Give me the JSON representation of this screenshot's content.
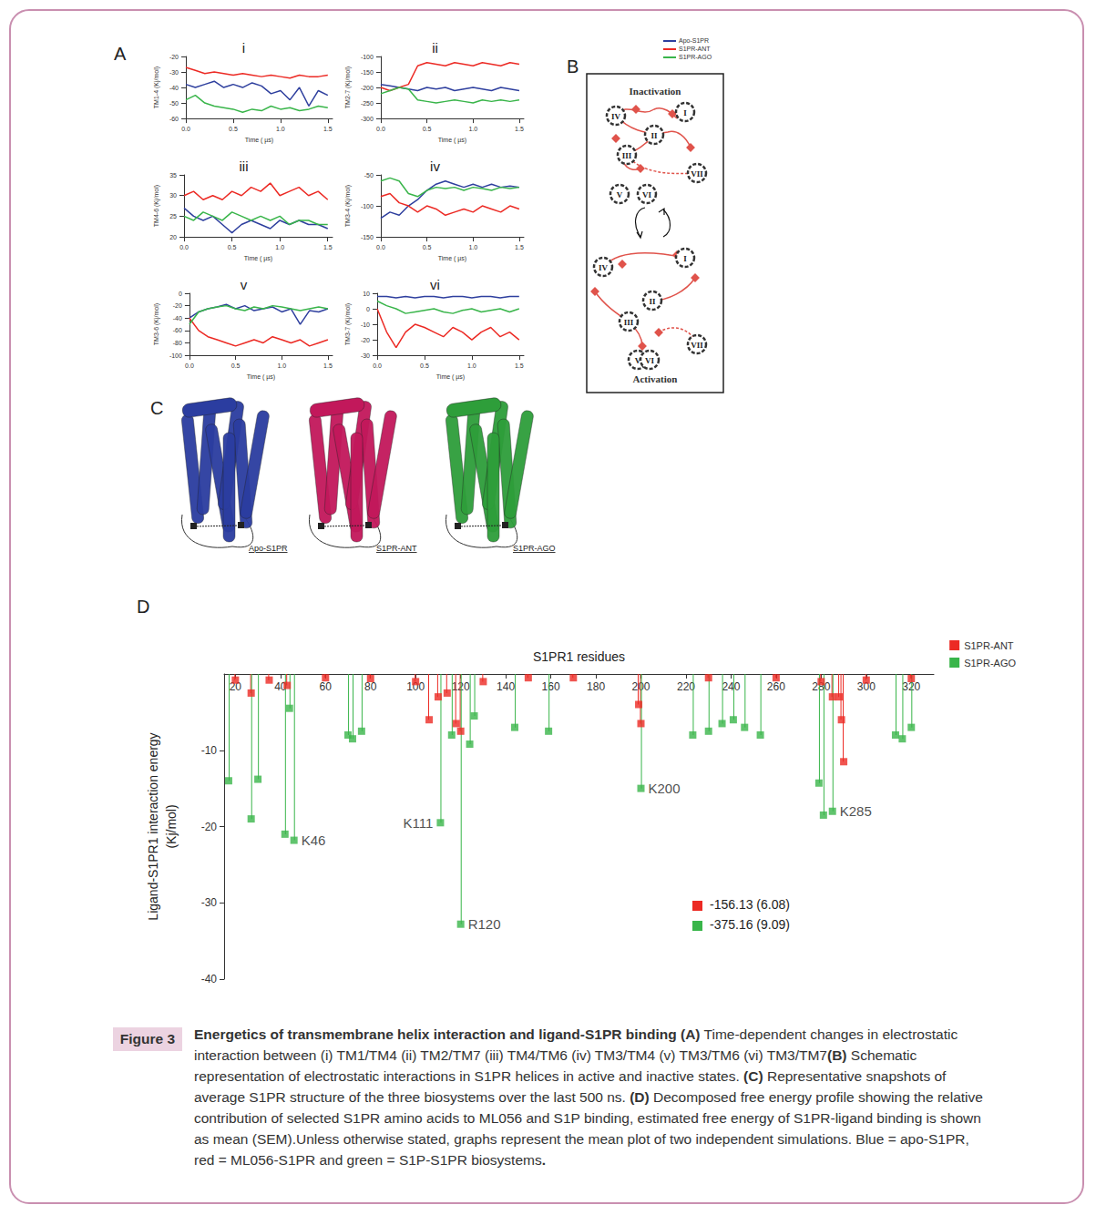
{
  "panel_labels": [
    "A",
    "B",
    "C",
    "D"
  ],
  "chart_data": [
    {
      "type": "line",
      "title": "i",
      "xlabel": "Time ( µs)",
      "ylabel": "TM1-4 (Kj/mol)",
      "x": [
        0,
        0.1,
        0.2,
        0.3,
        0.4,
        0.5,
        0.6,
        0.7,
        0.8,
        0.9,
        1.0,
        1.1,
        1.2,
        1.3,
        1.4,
        1.5
      ],
      "xlim": [
        0,
        1.55
      ],
      "xticks": [
        {
          "value": 0,
          "label": "0.0"
        },
        0.5,
        {
          "value": 1,
          "label": "1.0"
        },
        1.5
      ],
      "ylim": [
        -60,
        -20
      ],
      "yticks": [
        -60,
        -50,
        -40,
        -30,
        -20
      ],
      "series": [
        {
          "name": "Apo-S1PR",
          "color": "#2e3f9e",
          "values": [
            -38,
            -40,
            -38,
            -36,
            -40,
            -38,
            -40,
            -37,
            -39,
            -44,
            -42,
            -48,
            -40,
            -52,
            -42,
            -45
          ]
        },
        {
          "name": "S1PR-ANT",
          "color": "#ec2a24",
          "values": [
            -27,
            -29,
            -31,
            -30,
            -31,
            -32,
            -31,
            -32,
            -33,
            -32,
            -33,
            -34,
            -32,
            -33,
            -33,
            -32
          ]
        },
        {
          "name": "S1PR-AGO",
          "color": "#39b54a",
          "values": [
            -48,
            -45,
            -50,
            -52,
            -53,
            -54,
            -56,
            -54,
            -55,
            -52,
            -54,
            -53,
            -55,
            -54,
            -52,
            -53
          ]
        }
      ]
    },
    {
      "type": "line",
      "title": "ii",
      "xlabel": "Time ( µs)",
      "ylabel": "TM2-7 (Kj/mol)",
      "x": [
        0,
        0.1,
        0.2,
        0.3,
        0.4,
        0.5,
        0.6,
        0.7,
        0.8,
        0.9,
        1.0,
        1.1,
        1.2,
        1.3,
        1.4,
        1.5
      ],
      "xlim": [
        0,
        1.55
      ],
      "xticks": [
        {
          "value": 0,
          "label": "0.0"
        },
        0.5,
        {
          "value": 1,
          "label": "1.0"
        },
        1.5
      ],
      "ylim": [
        -300,
        -100
      ],
      "yticks": [
        -300,
        -250,
        -200,
        -150,
        -100
      ],
      "series": [
        {
          "name": "Apo-S1PR",
          "color": "#2e3f9e",
          "values": [
            -190,
            -195,
            -200,
            -205,
            -210,
            -200,
            -205,
            -200,
            -210,
            -205,
            -200,
            -205,
            -210,
            -200,
            -205,
            -210
          ]
        },
        {
          "name": "S1PR-ANT",
          "color": "#ec2a24",
          "values": [
            -200,
            -210,
            -200,
            -190,
            -130,
            -120,
            -125,
            -130,
            -120,
            -125,
            -130,
            -120,
            -125,
            -130,
            -120,
            -125
          ]
        },
        {
          "name": "S1PR-AGO",
          "color": "#39b54a",
          "values": [
            -220,
            -210,
            -200,
            -205,
            -240,
            -245,
            -250,
            -245,
            -240,
            -245,
            -250,
            -240,
            -245,
            -240,
            -245,
            -240
          ]
        }
      ]
    },
    {
      "type": "line",
      "title": "iii",
      "xlabel": "Time ( µs)",
      "ylabel": "TM4-6 (Kj/mol)",
      "x": [
        0,
        0.1,
        0.2,
        0.3,
        0.4,
        0.5,
        0.6,
        0.7,
        0.8,
        0.9,
        1.0,
        1.1,
        1.2,
        1.3,
        1.4,
        1.5
      ],
      "xlim": [
        0,
        1.55
      ],
      "xticks": [
        {
          "value": 0,
          "label": "0.0"
        },
        0.5,
        {
          "value": 1,
          "label": "1.0"
        },
        1.5
      ],
      "ylim": [
        20,
        35
      ],
      "yticks": [
        20,
        25,
        30,
        35
      ],
      "series": [
        {
          "name": "Apo-S1PR",
          "color": "#2e3f9e",
          "values": [
            27,
            25,
            24,
            25,
            23,
            21,
            23,
            24,
            23,
            22,
            24,
            23,
            24,
            23,
            23,
            22
          ]
        },
        {
          "name": "S1PR-ANT",
          "color": "#ec2a24",
          "values": [
            30,
            31,
            29,
            30,
            29,
            31,
            30,
            32,
            31,
            33,
            30,
            31,
            32,
            30,
            31,
            29
          ]
        },
        {
          "name": "S1PR-AGO",
          "color": "#39b54a",
          "values": [
            25,
            24,
            26,
            25,
            24,
            26,
            25,
            24,
            25,
            24,
            25,
            23,
            24,
            24,
            23,
            23
          ]
        }
      ]
    },
    {
      "type": "line",
      "title": "iv",
      "xlabel": "Time ( µs)",
      "ylabel": "TM3-4 (Kj/mol)",
      "x": [
        0,
        0.1,
        0.2,
        0.3,
        0.4,
        0.5,
        0.6,
        0.7,
        0.8,
        0.9,
        1.0,
        1.1,
        1.2,
        1.3,
        1.4,
        1.5
      ],
      "xlim": [
        0,
        1.55
      ],
      "xticks": [
        {
          "value": 0,
          "label": "0.0"
        },
        0.5,
        {
          "value": 1,
          "label": "1.0"
        },
        1.5
      ],
      "ylim": [
        -150,
        -50
      ],
      "yticks": [
        -150,
        -100,
        -50
      ],
      "series": [
        {
          "name": "Apo-S1PR",
          "color": "#2e3f9e",
          "values": [
            -120,
            -110,
            -115,
            -100,
            -90,
            -75,
            -65,
            -60,
            -65,
            -70,
            -65,
            -70,
            -65,
            -70,
            -68,
            -70
          ]
        },
        {
          "name": "S1PR-ANT",
          "color": "#ec2a24",
          "values": [
            -85,
            -80,
            -95,
            -100,
            -110,
            -100,
            -105,
            -115,
            -110,
            -105,
            -110,
            -100,
            -105,
            -110,
            -100,
            -105
          ]
        },
        {
          "name": "S1PR-AGO",
          "color": "#39b54a",
          "values": [
            -60,
            -55,
            -60,
            -80,
            -85,
            -75,
            -70,
            -72,
            -70,
            -75,
            -70,
            -72,
            -75,
            -70,
            -72,
            -70
          ]
        }
      ]
    },
    {
      "type": "line",
      "title": "v",
      "xlabel": "Time ( µs)",
      "ylabel": "TM3-6 (Kj/mol)",
      "x": [
        0,
        0.1,
        0.2,
        0.3,
        0.4,
        0.5,
        0.6,
        0.7,
        0.8,
        0.9,
        1.0,
        1.1,
        1.2,
        1.3,
        1.4,
        1.5
      ],
      "xlim": [
        0,
        1.55
      ],
      "xticks": [
        {
          "value": 0,
          "label": "0.0"
        },
        0.5,
        {
          "value": 1,
          "label": "1.0"
        },
        1.5
      ],
      "ylim": [
        -100,
        0
      ],
      "yticks": [
        -100,
        -80,
        -60,
        -40,
        -20,
        0
      ],
      "series": [
        {
          "name": "Apo-S1PR",
          "color": "#2e3f9e",
          "values": [
            -40,
            -30,
            -25,
            -22,
            -18,
            -25,
            -20,
            -28,
            -25,
            -22,
            -30,
            -25,
            -50,
            -28,
            -30,
            -25
          ]
        },
        {
          "name": "S1PR-ANT",
          "color": "#ec2a24",
          "values": [
            -40,
            -60,
            -70,
            -75,
            -80,
            -85,
            -80,
            -75,
            -80,
            -70,
            -75,
            -80,
            -75,
            -85,
            -80,
            -75
          ]
        },
        {
          "name": "S1PR-AGO",
          "color": "#39b54a",
          "values": [
            -50,
            -30,
            -25,
            -22,
            -20,
            -25,
            -28,
            -22,
            -25,
            -20,
            -22,
            -25,
            -28,
            -25,
            -22,
            -25
          ]
        }
      ]
    },
    {
      "type": "line",
      "title": "vi",
      "xlabel": "Time ( µs)",
      "ylabel": "TM3-7 (Kj/mol)",
      "x": [
        0,
        0.1,
        0.2,
        0.3,
        0.4,
        0.5,
        0.6,
        0.7,
        0.8,
        0.9,
        1.0,
        1.1,
        1.2,
        1.3,
        1.4,
        1.5
      ],
      "xlim": [
        0,
        1.55
      ],
      "xticks": [
        {
          "value": 0,
          "label": "0.0"
        },
        0.5,
        {
          "value": 1,
          "label": "1.0"
        },
        1.5
      ],
      "ylim": [
        -30,
        10
      ],
      "yticks": [
        -30,
        -20,
        -10,
        0,
        10
      ],
      "series": [
        {
          "name": "Apo-S1PR",
          "color": "#2e3f9e",
          "values": [
            8,
            8,
            7,
            8,
            7,
            8,
            8,
            7,
            8,
            8,
            7,
            8,
            8,
            7,
            8,
            8
          ]
        },
        {
          "name": "S1PR-ANT",
          "color": "#ec2a24",
          "values": [
            0,
            -15,
            -25,
            -15,
            -10,
            -12,
            -15,
            -18,
            -12,
            -15,
            -20,
            -15,
            -12,
            -18,
            -15,
            -20
          ]
        },
        {
          "name": "S1PR-AGO",
          "color": "#39b54a",
          "values": [
            5,
            2,
            0,
            -3,
            -2,
            -1,
            0,
            -2,
            -3,
            -1,
            0,
            -2,
            -1,
            0,
            -2,
            0
          ]
        }
      ]
    },
    {
      "type": "scatter",
      "xlabel": "S1PR1 residues",
      "ylabel": "Ligand-S1PR1 interaction energy\n(Kj/mol)",
      "xlim": [
        15,
        330
      ],
      "xticks": [
        20,
        40,
        60,
        80,
        100,
        120,
        140,
        160,
        180,
        200,
        220,
        240,
        260,
        280,
        300,
        320
      ],
      "ylim": [
        -40,
        0
      ],
      "yticks": [
        -40,
        -30,
        -20,
        -10
      ],
      "legend": "top-right",
      "series": [
        {
          "name": "S1PR-ANT",
          "color": "#ec2a24",
          "marker": "square",
          "x": [
            20,
            27,
            35,
            43,
            60,
            80,
            100,
            106,
            110,
            114,
            118,
            120,
            130,
            150,
            170,
            199,
            200,
            230,
            260,
            280,
            285,
            288,
            289,
            290,
            300,
            320
          ],
          "values": [
            -0.8,
            -2.5,
            -0.8,
            -1.5,
            -0.5,
            -0.6,
            -1,
            -6,
            -3,
            -2.5,
            -6.5,
            -7.5,
            -1,
            -0.5,
            -0.5,
            -4,
            -6.5,
            -0.5,
            -0.5,
            -1,
            -3,
            -3,
            -6,
            -11.5,
            -0.8,
            -0.6
          ]
        },
        {
          "name": "S1PR-AGO",
          "color": "#39b54a",
          "marker": "square",
          "x": [
            17,
            27,
            30,
            42,
            44,
            46,
            70,
            72,
            76,
            111,
            116,
            120,
            124,
            126,
            144,
            159,
            200,
            223,
            230,
            236,
            241,
            246,
            253,
            279,
            281,
            285,
            313,
            316,
            320
          ],
          "values": [
            -14,
            -19,
            -13.8,
            -21,
            -4.5,
            -21.8,
            -8,
            -8.5,
            -7.5,
            -19.5,
            -8,
            -32.8,
            -9.2,
            -5.5,
            -7,
            -7.5,
            -15,
            -8,
            -7.5,
            -6.5,
            -6,
            -7,
            -8,
            -14.3,
            -18.5,
            -18,
            -8,
            -8.5,
            -7
          ]
        }
      ],
      "annotations": [
        {
          "text": "K46",
          "x": 46,
          "y": -21.8
        },
        {
          "text": "K111",
          "x": 111,
          "y": -19.5
        },
        {
          "text": "R120",
          "x": 120,
          "y": -32.8
        },
        {
          "text": "K200",
          "x": 200,
          "y": -15
        },
        {
          "text": "K285",
          "x": 285,
          "y": -18
        }
      ],
      "binding_energy": [
        {
          "series": "S1PR-ANT",
          "value": -156.13,
          "sem": 6.08,
          "label": "-156.13 (6.08)"
        },
        {
          "series": "S1PR-AGO",
          "value": -375.16,
          "sem": 9.09,
          "label": "-375.16 (9.09)"
        }
      ]
    }
  ],
  "diagram_b": {
    "title_top": "Inactivation",
    "title_bottom": "Activation",
    "helices": [
      "I",
      "II",
      "III",
      "IV",
      "V",
      "VI",
      "VII"
    ]
  },
  "panel_c": {
    "structures": [
      {
        "label": "Apo-S1PR",
        "color": "#2b3da0"
      },
      {
        "label": "S1PR-ANT",
        "color": "#c2185b"
      },
      {
        "label": "S1PR-AGO",
        "color": "#2e9e3a"
      }
    ]
  },
  "caption": {
    "tag": "Figure 3",
    "segments": [
      {
        "text": "Energetics of transmembrane helix interaction and ligand-S1PR binding (A)",
        "bold": true
      },
      {
        "text": " Time-dependent changes in electrostatic interaction between (i) TM1/TM4 (ii) TM2/TM7 (iii) TM4/TM6 (iv) TM3/TM4 (v) TM3/TM6 (vi) TM3/TM7",
        "bold": false
      },
      {
        "text": "(B)",
        "bold": true
      },
      {
        "text": " Schematic representation of electrostatic interactions in S1PR helices in active and inactive states. ",
        "bold": false
      },
      {
        "text": "(C)",
        "bold": true
      },
      {
        "text": " Representative snapshots of average S1PR structure of the three biosystems over the last 500 ns. ",
        "bold": false
      },
      {
        "text": "(D)",
        "bold": true
      },
      {
        "text": " Decomposed free energy profile showing the relative contribution of selected S1PR amino acids to ML056 and S1P binding, estimated free energy of S1PR-ligand binding is shown as mean (SEM).Unless otherwise stated, graphs represent the mean plot of two independent simulations. Blue = apo-S1PR, red = ML056-S1PR and green = S1P-S1PR biosystems",
        "bold": false
      },
      {
        "text": ".",
        "bold": true
      }
    ]
  }
}
